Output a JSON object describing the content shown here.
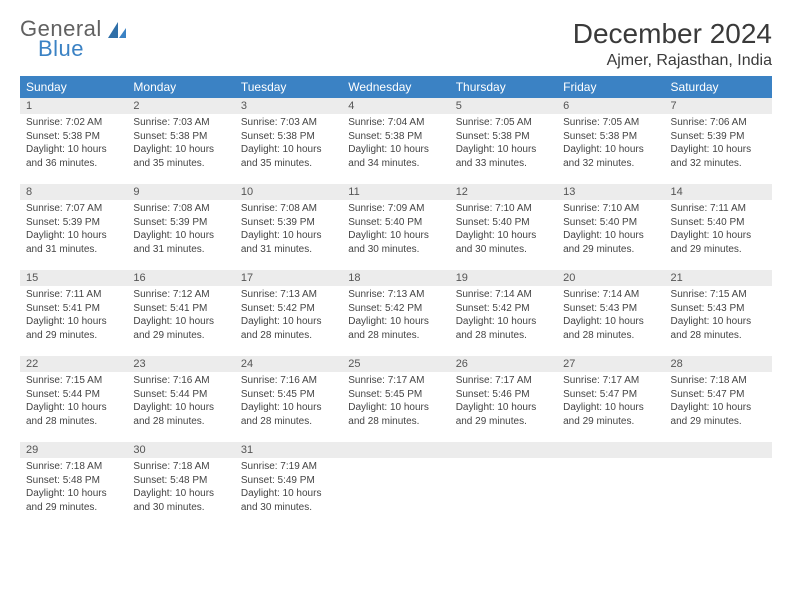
{
  "logo": {
    "text1": "General",
    "text2": "Blue"
  },
  "title": "December 2024",
  "location": "Ajmer, Rajasthan, India",
  "colors": {
    "header_bg": "#3b82c4",
    "header_text": "#ffffff",
    "daynum_bg": "#ececec",
    "rule": "#3b82c4",
    "text": "#444444",
    "logo_gray": "#616161",
    "logo_blue": "#3b82c4"
  },
  "weekdays": [
    "Sunday",
    "Monday",
    "Tuesday",
    "Wednesday",
    "Thursday",
    "Friday",
    "Saturday"
  ],
  "weeks": [
    [
      {
        "n": "1",
        "sr": "7:02 AM",
        "ss": "5:38 PM",
        "dl": "10 hours and 36 minutes."
      },
      {
        "n": "2",
        "sr": "7:03 AM",
        "ss": "5:38 PM",
        "dl": "10 hours and 35 minutes."
      },
      {
        "n": "3",
        "sr": "7:03 AM",
        "ss": "5:38 PM",
        "dl": "10 hours and 35 minutes."
      },
      {
        "n": "4",
        "sr": "7:04 AM",
        "ss": "5:38 PM",
        "dl": "10 hours and 34 minutes."
      },
      {
        "n": "5",
        "sr": "7:05 AM",
        "ss": "5:38 PM",
        "dl": "10 hours and 33 minutes."
      },
      {
        "n": "6",
        "sr": "7:05 AM",
        "ss": "5:38 PM",
        "dl": "10 hours and 32 minutes."
      },
      {
        "n": "7",
        "sr": "7:06 AM",
        "ss": "5:39 PM",
        "dl": "10 hours and 32 minutes."
      }
    ],
    [
      {
        "n": "8",
        "sr": "7:07 AM",
        "ss": "5:39 PM",
        "dl": "10 hours and 31 minutes."
      },
      {
        "n": "9",
        "sr": "7:08 AM",
        "ss": "5:39 PM",
        "dl": "10 hours and 31 minutes."
      },
      {
        "n": "10",
        "sr": "7:08 AM",
        "ss": "5:39 PM",
        "dl": "10 hours and 31 minutes."
      },
      {
        "n": "11",
        "sr": "7:09 AM",
        "ss": "5:40 PM",
        "dl": "10 hours and 30 minutes."
      },
      {
        "n": "12",
        "sr": "7:10 AM",
        "ss": "5:40 PM",
        "dl": "10 hours and 30 minutes."
      },
      {
        "n": "13",
        "sr": "7:10 AM",
        "ss": "5:40 PM",
        "dl": "10 hours and 29 minutes."
      },
      {
        "n": "14",
        "sr": "7:11 AM",
        "ss": "5:40 PM",
        "dl": "10 hours and 29 minutes."
      }
    ],
    [
      {
        "n": "15",
        "sr": "7:11 AM",
        "ss": "5:41 PM",
        "dl": "10 hours and 29 minutes."
      },
      {
        "n": "16",
        "sr": "7:12 AM",
        "ss": "5:41 PM",
        "dl": "10 hours and 29 minutes."
      },
      {
        "n": "17",
        "sr": "7:13 AM",
        "ss": "5:42 PM",
        "dl": "10 hours and 28 minutes."
      },
      {
        "n": "18",
        "sr": "7:13 AM",
        "ss": "5:42 PM",
        "dl": "10 hours and 28 minutes."
      },
      {
        "n": "19",
        "sr": "7:14 AM",
        "ss": "5:42 PM",
        "dl": "10 hours and 28 minutes."
      },
      {
        "n": "20",
        "sr": "7:14 AM",
        "ss": "5:43 PM",
        "dl": "10 hours and 28 minutes."
      },
      {
        "n": "21",
        "sr": "7:15 AM",
        "ss": "5:43 PM",
        "dl": "10 hours and 28 minutes."
      }
    ],
    [
      {
        "n": "22",
        "sr": "7:15 AM",
        "ss": "5:44 PM",
        "dl": "10 hours and 28 minutes."
      },
      {
        "n": "23",
        "sr": "7:16 AM",
        "ss": "5:44 PM",
        "dl": "10 hours and 28 minutes."
      },
      {
        "n": "24",
        "sr": "7:16 AM",
        "ss": "5:45 PM",
        "dl": "10 hours and 28 minutes."
      },
      {
        "n": "25",
        "sr": "7:17 AM",
        "ss": "5:45 PM",
        "dl": "10 hours and 28 minutes."
      },
      {
        "n": "26",
        "sr": "7:17 AM",
        "ss": "5:46 PM",
        "dl": "10 hours and 29 minutes."
      },
      {
        "n": "27",
        "sr": "7:17 AM",
        "ss": "5:47 PM",
        "dl": "10 hours and 29 minutes."
      },
      {
        "n": "28",
        "sr": "7:18 AM",
        "ss": "5:47 PM",
        "dl": "10 hours and 29 minutes."
      }
    ],
    [
      {
        "n": "29",
        "sr": "7:18 AM",
        "ss": "5:48 PM",
        "dl": "10 hours and 29 minutes."
      },
      {
        "n": "30",
        "sr": "7:18 AM",
        "ss": "5:48 PM",
        "dl": "10 hours and 30 minutes."
      },
      {
        "n": "31",
        "sr": "7:19 AM",
        "ss": "5:49 PM",
        "dl": "10 hours and 30 minutes."
      },
      null,
      null,
      null,
      null
    ]
  ],
  "labels": {
    "sunrise": "Sunrise:",
    "sunset": "Sunset:",
    "daylight": "Daylight:"
  }
}
